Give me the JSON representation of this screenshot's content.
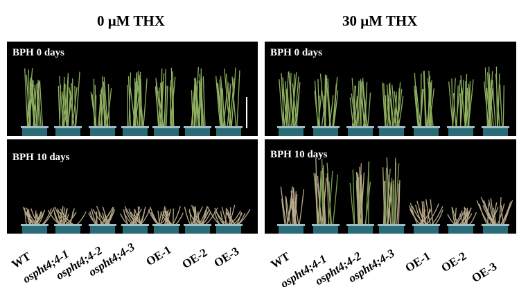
{
  "conditions": [
    "0 μM  THX",
    "30 μM  THX"
  ],
  "panels": {
    "left_top": "BPH 0 days",
    "left_bottom": "BPH 10 days",
    "right_top": "BPH 0 days",
    "right_bottom": "BPH 10 days"
  },
  "genotypes": [
    "WT",
    "ospht4;4-1",
    "ospht4;4-2",
    "ospht4;4-3",
    "OE-1",
    "OE-2",
    "OE-3"
  ],
  "colors": {
    "background_panel": "#000000",
    "pot": "#2a6b78",
    "healthy_leaf": "#8fb060",
    "withered_leaf": "#b8a98a"
  }
}
